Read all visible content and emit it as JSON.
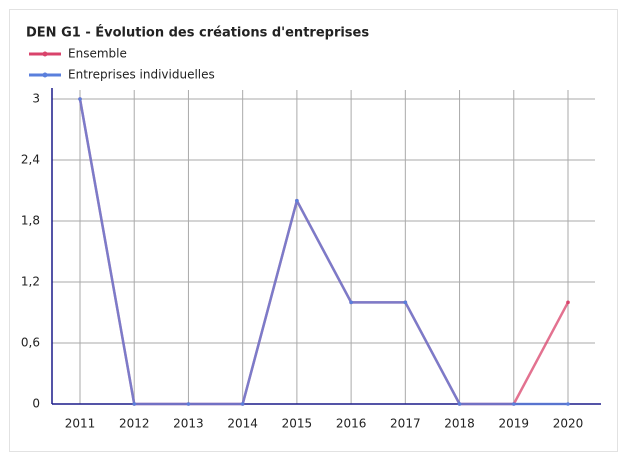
{
  "chart_data": {
    "type": "line",
    "title": "DEN G1 - Évolution des créations d'entreprises",
    "categories": [
      "2011",
      "2012",
      "2013",
      "2014",
      "2015",
      "2016",
      "2017",
      "2018",
      "2019",
      "2020"
    ],
    "series": [
      {
        "name": "Ensemble",
        "color": "#d9436b",
        "values": [
          3,
          0,
          0,
          0,
          2,
          1,
          1,
          0,
          0,
          1
        ]
      },
      {
        "name": "Entreprises individuelles",
        "color": "#5a7fdc",
        "values": [
          3,
          0,
          0,
          0,
          2,
          1,
          1,
          0,
          0,
          0
        ]
      }
    ],
    "ylim": [
      0,
      3
    ],
    "yticks": [
      0,
      {
        "value": 0.6,
        "label": "0,6"
      },
      {
        "value": 1.2,
        "label": "1,2"
      },
      {
        "value": 1.8,
        "label": "1,8"
      },
      {
        "value": 2.4,
        "label": "2,4"
      },
      3
    ],
    "grid": true,
    "legend": "top-left"
  }
}
